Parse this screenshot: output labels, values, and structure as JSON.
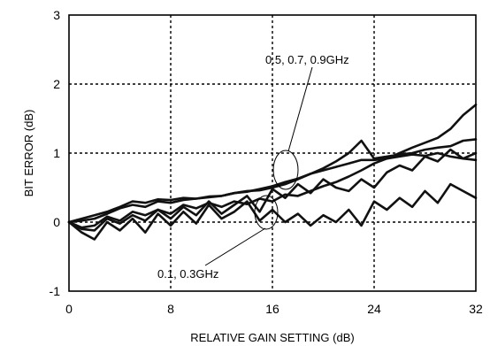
{
  "chart_data": {
    "type": "line",
    "title": "",
    "xlabel": "RELATIVE GAIN SETTING (dB)",
    "ylabel": "BIT ERROR (dB)",
    "xlim": [
      0,
      32
    ],
    "ylim": [
      -1,
      3
    ],
    "xticks": [
      0,
      8,
      16,
      24,
      32
    ],
    "yticks": [
      -1,
      0,
      1,
      2,
      3
    ],
    "xtick_labels": [
      "0",
      "8",
      "16",
      "24",
      "32"
    ],
    "ytick_labels": [
      "-1",
      "0",
      "1",
      "2",
      "3"
    ],
    "grid": true,
    "series": [
      {
        "x": [
          0,
          1,
          2,
          3,
          4,
          5,
          6,
          7,
          8,
          9,
          10,
          11,
          12,
          13,
          14,
          15,
          16,
          17,
          18,
          19,
          20,
          21,
          22,
          23,
          24,
          25,
          26,
          27,
          28,
          29,
          30,
          31,
          32
        ],
        "y": [
          0,
          -0.1,
          -0.12,
          0.05,
          -0.02,
          0.1,
          0.02,
          0.18,
          0.05,
          0.22,
          0.1,
          0.3,
          0.12,
          0.25,
          0.38,
          0.15,
          0.48,
          0.35,
          0.55,
          0.42,
          0.62,
          0.5,
          0.45,
          0.62,
          0.5,
          0.72,
          0.82,
          0.75,
          0.95,
          0.88,
          1.05,
          0.92,
          1.0
        ]
      },
      {
        "x": [
          0,
          1,
          2,
          3,
          4,
          5,
          6,
          7,
          8,
          9,
          10,
          11,
          12,
          13,
          14,
          15,
          16,
          17,
          18,
          19,
          20,
          21,
          22,
          23,
          24,
          25,
          26,
          27,
          28,
          29,
          30,
          31,
          32
        ],
        "y": [
          0,
          -0.08,
          -0.05,
          0.08,
          0.02,
          0.15,
          0.1,
          0.18,
          0.12,
          0.25,
          0.2,
          0.28,
          0.22,
          0.3,
          0.26,
          0.34,
          0.3,
          0.4,
          0.38,
          0.45,
          0.52,
          0.58,
          0.66,
          0.75,
          0.85,
          0.92,
          1.0,
          1.08,
          1.15,
          1.22,
          1.35,
          1.55,
          1.7
        ]
      },
      {
        "x": [
          0,
          1,
          2,
          3,
          4,
          5,
          6,
          7,
          8,
          9,
          10,
          11,
          12,
          13,
          14,
          15,
          16,
          17,
          18,
          19,
          20,
          21,
          22,
          23,
          24,
          25,
          26,
          27,
          28,
          29,
          30,
          31,
          32
        ],
        "y": [
          0,
          0.02,
          0.05,
          0.12,
          0.2,
          0.25,
          0.22,
          0.3,
          0.28,
          0.32,
          0.34,
          0.36,
          0.38,
          0.42,
          0.45,
          0.46,
          0.5,
          0.55,
          0.62,
          0.7,
          0.78,
          0.88,
          1.0,
          1.18,
          0.92,
          0.95,
          0.98,
          1.0,
          1.05,
          1.08,
          1.1,
          1.18,
          1.2
        ]
      },
      {
        "x": [
          0,
          1,
          2,
          3,
          4,
          5,
          6,
          7,
          8,
          9,
          10,
          11,
          12,
          13,
          14,
          15,
          16,
          17,
          18,
          19,
          20,
          21,
          22,
          23,
          24,
          25,
          26,
          27,
          28,
          29,
          30,
          31,
          32
        ],
        "y": [
          0,
          0.05,
          0.1,
          0.15,
          0.22,
          0.3,
          0.28,
          0.33,
          0.32,
          0.35,
          0.34,
          0.37,
          0.38,
          0.42,
          0.44,
          0.48,
          0.52,
          0.58,
          0.63,
          0.7,
          0.75,
          0.8,
          0.85,
          0.9,
          0.9,
          0.92,
          0.95,
          0.98,
          0.96,
          1.0,
          0.95,
          0.92,
          0.9
        ]
      },
      {
        "x": [
          0,
          1,
          2,
          3,
          4,
          5,
          6,
          7,
          8,
          9,
          10,
          11,
          12,
          13,
          14,
          15,
          16,
          17,
          18,
          19,
          20,
          21,
          22,
          23,
          24,
          25,
          26,
          27,
          28,
          29,
          30,
          31,
          32
        ],
        "y": [
          0,
          -0.15,
          -0.25,
          0.0,
          -0.12,
          0.05,
          -0.15,
          0.12,
          -0.05,
          0.15,
          -0.02,
          0.25,
          0.05,
          0.15,
          0.3,
          0.02,
          0.18,
          0.0,
          0.12,
          -0.05,
          0.1,
          0.0,
          0.18,
          -0.05,
          0.3,
          0.18,
          0.35,
          0.22,
          0.45,
          0.28,
          0.55,
          0.45,
          0.35
        ]
      }
    ],
    "annotations": [
      {
        "text": "0.5, 0.7, 0.9GHz",
        "x": 17.5,
        "y": 0.72
      },
      {
        "text": "0.1, 0.3GHz",
        "x": 15.2,
        "y": 0.08
      }
    ]
  }
}
